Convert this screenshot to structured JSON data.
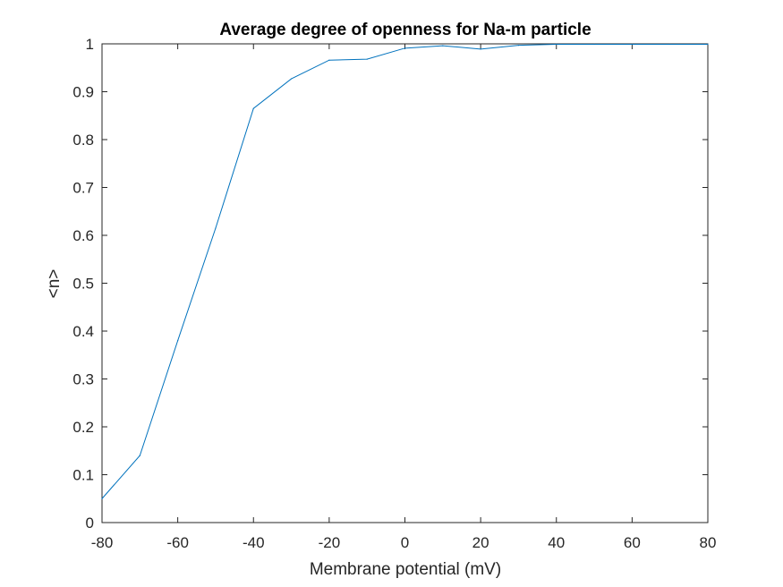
{
  "chart_data": {
    "type": "line",
    "title": "Average degree of openness for Na-m particle",
    "xlabel": "Membrane potential (mV)",
    "ylabel": "<n>",
    "xlim": [
      -80,
      80
    ],
    "ylim": [
      0,
      1
    ],
    "xticks": [
      -80,
      -60,
      -40,
      -20,
      0,
      20,
      40,
      60,
      80
    ],
    "xtick_labels": [
      "-80",
      "-60",
      "-40",
      "-20",
      "0",
      "20",
      "40",
      "60",
      "80"
    ],
    "yticks": [
      0,
      0.1,
      0.2,
      0.3,
      0.4,
      0.5,
      0.6,
      0.7,
      0.8,
      0.9,
      1
    ],
    "ytick_labels": [
      "0",
      "0.1",
      "0.2",
      "0.3",
      "0.4",
      "0.5",
      "0.6",
      "0.7",
      "0.8",
      "0.9",
      "1"
    ],
    "grid": false,
    "series": [
      {
        "color": "#0072bd",
        "x": [
          -80,
          -70,
          -60,
          -50,
          -40,
          -30,
          -20,
          -10,
          0,
          10,
          20,
          30,
          40,
          50,
          60,
          70,
          80
        ],
        "y": [
          0.05,
          0.14,
          0.38,
          0.615,
          0.865,
          0.927,
          0.966,
          0.968,
          0.991,
          0.996,
          0.989,
          0.997,
          0.999,
          0.999,
          0.999,
          0.999,
          0.999
        ]
      }
    ]
  }
}
